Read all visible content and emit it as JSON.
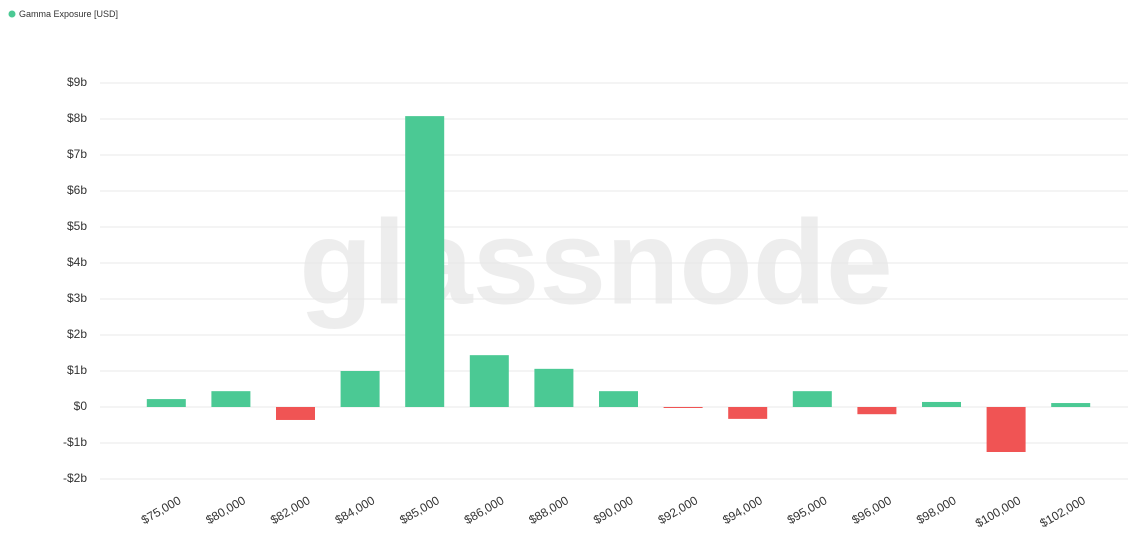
{
  "chart_data": {
    "type": "bar",
    "legend": "Gamma Exposure [USD]",
    "watermark": "glassnode",
    "categories": [
      "$75,000",
      "$80,000",
      "$82,000",
      "$84,000",
      "$85,000",
      "$86,000",
      "$88,000",
      "$90,000",
      "$92,000",
      "$94,000",
      "$95,000",
      "$96,000",
      "$98,000",
      "$100,000",
      "$102,000"
    ],
    "values": [
      0.22,
      0.44,
      -0.36,
      1.0,
      8.08,
      1.44,
      1.06,
      0.44,
      -0.02,
      -0.33,
      0.44,
      -0.2,
      0.14,
      -1.25,
      0.11
    ],
    "color": "#4bc994",
    "negative_color": "#f05454",
    "ylim": [
      -2,
      9
    ],
    "yticks": [
      {
        "value": -2,
        "label": "-$2b"
      },
      {
        "value": -1,
        "label": "-$1b"
      },
      {
        "value": 0,
        "label": "$0"
      },
      {
        "value": 1,
        "label": "$1b"
      },
      {
        "value": 2,
        "label": "$2b"
      },
      {
        "value": 3,
        "label": "$3b"
      },
      {
        "value": 4,
        "label": "$4b"
      },
      {
        "value": 5,
        "label": "$5b"
      },
      {
        "value": 6,
        "label": "$6b"
      },
      {
        "value": 7,
        "label": "$7b"
      },
      {
        "value": 8,
        "label": "$8b"
      },
      {
        "value": 9,
        "label": "$9b"
      }
    ],
    "grid": true
  }
}
